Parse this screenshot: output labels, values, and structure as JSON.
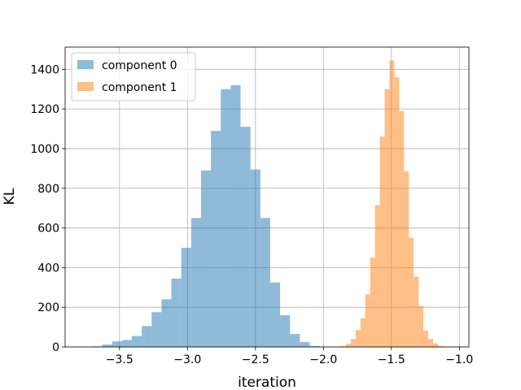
{
  "chart_data": {
    "type": "histogram",
    "title": "",
    "xlabel": "iteration",
    "ylabel": "KL",
    "xlim": [
      -3.9,
      -0.93
    ],
    "ylim": [
      0,
      1512
    ],
    "xticks": [
      -3.5,
      -3.0,
      -2.5,
      -2.0,
      -1.5,
      -1.0
    ],
    "xtick_labels": [
      "−3.5",
      "−3.0",
      "−2.5",
      "−2.0",
      "−1.5",
      "−1.0"
    ],
    "yticks": [
      0,
      200,
      400,
      600,
      800,
      1000,
      1200,
      1400
    ],
    "ytick_labels": [
      "0",
      "200",
      "400",
      "600",
      "800",
      "1000",
      "1200",
      "1400"
    ],
    "grid": true,
    "legend_position": "upper-left",
    "series": [
      {
        "name": "component 0",
        "color": "#1f77b4",
        "alpha": 0.5,
        "bin_start": -3.7,
        "bin_width": 0.0727,
        "counts": [
          3,
          12,
          28,
          35,
          55,
          105,
          175,
          240,
          345,
          500,
          650,
          890,
          1090,
          1300,
          1320,
          1110,
          895,
          650,
          325,
          160,
          65,
          25,
          5
        ]
      },
      {
        "name": "component 1",
        "color": "#ff7f0e",
        "alpha": 0.5,
        "bin_start": -1.87,
        "bin_width": 0.0356,
        "counts": [
          4,
          15,
          40,
          85,
          145,
          265,
          450,
          715,
          1060,
          1300,
          1445,
          1360,
          1190,
          885,
          550,
          355,
          205,
          82,
          40,
          18,
          5
        ]
      }
    ]
  }
}
